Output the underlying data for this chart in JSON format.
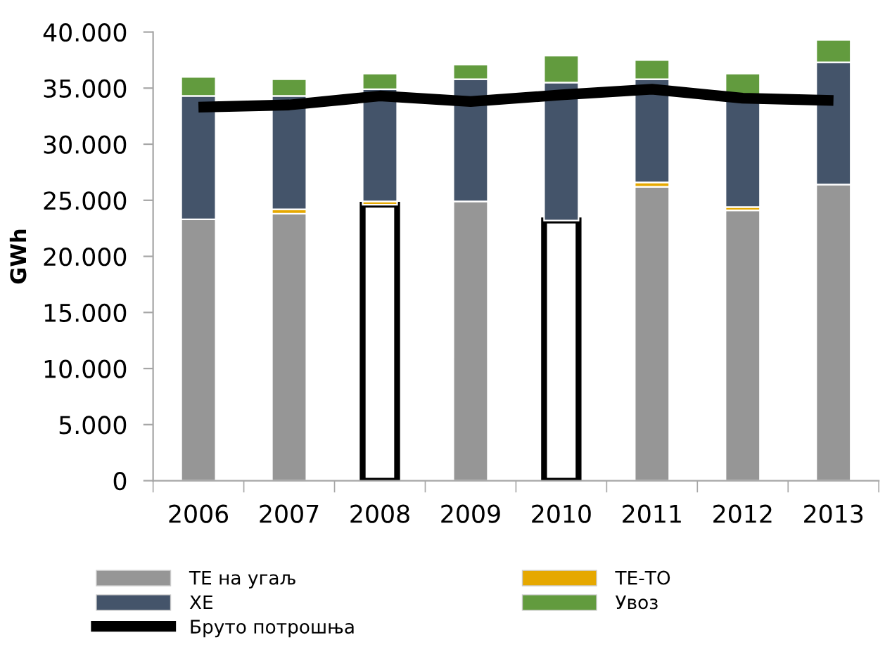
{
  "chart_data": {
    "type": "bar",
    "stacked": true,
    "categories": [
      "2006",
      "2007",
      "2008",
      "2009",
      "2010",
      "2011",
      "2012",
      "2013"
    ],
    "ylabel": "GWh",
    "ylim": [
      0,
      40000
    ],
    "yticks": [
      0,
      {
        "value": 5000,
        "label": "5.000"
      },
      {
        "value": 10000,
        "label": "10.000"
      },
      {
        "value": 15000,
        "label": "15.000"
      },
      {
        "value": 20000,
        "label": "20.000"
      },
      {
        "value": 25000,
        "label": "25.000"
      },
      {
        "value": 30000,
        "label": "30.000"
      },
      {
        "value": 35000,
        "label": "35.000"
      },
      {
        "value": 40000,
        "label": "40.000"
      }
    ],
    "legend": "bottom",
    "series": [
      {
        "name": "ТЕ на угаљ",
        "color": "#969696",
        "colors": [
          "#969696",
          "#969696",
          "#ffffff",
          "#969696",
          "#ffffff",
          "#969696",
          "#969696",
          "#969696"
        ],
        "values": [
          23300,
          23800,
          24600,
          24900,
          23200,
          26200,
          24100,
          26400
        ]
      },
      {
        "name": "ТЕ-ТО",
        "color": "#e6a800",
        "values": [
          null,
          400,
          300,
          null,
          null,
          400,
          300,
          null
        ]
      },
      {
        "name": "ХЕ",
        "color": "#44546a",
        "values": [
          11000,
          10100,
          10000,
          10900,
          12300,
          9200,
          9600,
          10900
        ]
      },
      {
        "name": "Увоз",
        "color": "#629b3e",
        "values": [
          1700,
          1500,
          1400,
          1300,
          2400,
          1700,
          2300,
          2000
        ]
      },
      {
        "name": "Бруто потрошња",
        "type": "line",
        "color": "#000000",
        "values": [
          33300,
          33500,
          34300,
          33800,
          34400,
          34900,
          34100,
          33900
        ]
      }
    ]
  }
}
